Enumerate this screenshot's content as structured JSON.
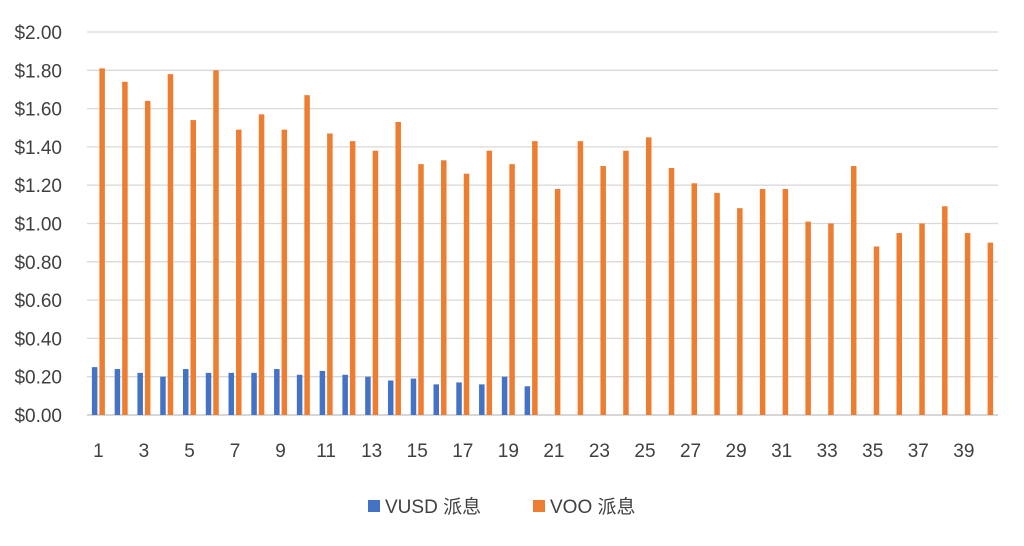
{
  "chart_data": {
    "type": "bar",
    "title": "",
    "xlabel": "",
    "ylabel": "",
    "ylim": [
      0,
      2
    ],
    "y_ticks": [
      "$0.00",
      "$0.20",
      "$0.40",
      "$0.60",
      "$0.80",
      "$1.00",
      "$1.20",
      "$1.40",
      "$1.60",
      "$1.80",
      "$2.00"
    ],
    "y_tick_values": [
      0,
      0.2,
      0.4,
      0.6,
      0.8,
      1.0,
      1.2,
      1.4,
      1.6,
      1.8,
      2.0
    ],
    "categories": [
      1,
      2,
      3,
      4,
      5,
      6,
      7,
      8,
      9,
      10,
      11,
      12,
      13,
      14,
      15,
      16,
      17,
      18,
      19,
      20,
      21,
      22,
      23,
      24,
      25,
      26,
      27,
      28,
      29,
      30,
      31,
      32,
      33,
      34,
      35,
      36,
      37,
      38,
      39,
      40
    ],
    "x_tick_labels_shown": [
      "1",
      "3",
      "5",
      "7",
      "9",
      "11",
      "13",
      "15",
      "17",
      "19",
      "21",
      "23",
      "25",
      "27",
      "29",
      "31",
      "33",
      "35",
      "37",
      "39"
    ],
    "grid": "horizontal",
    "legend_position": "bottom",
    "series": [
      {
        "name": "VUSD 派息",
        "color": "#4472C4",
        "values": [
          0.25,
          0.24,
          0.22,
          0.2,
          0.24,
          0.22,
          0.22,
          0.22,
          0.24,
          0.21,
          0.23,
          0.21,
          0.2,
          0.18,
          0.19,
          0.16,
          0.17,
          0.16,
          0.2,
          0.15,
          null,
          null,
          null,
          null,
          null,
          null,
          null,
          null,
          null,
          null,
          null,
          null,
          null,
          null,
          null,
          null,
          null,
          null,
          null,
          null
        ]
      },
      {
        "name": "VOO 派息",
        "color": "#ED7D31",
        "values": [
          1.81,
          1.74,
          1.64,
          1.78,
          1.54,
          1.8,
          1.49,
          1.57,
          1.49,
          1.67,
          1.47,
          1.43,
          1.38,
          1.53,
          1.31,
          1.33,
          1.26,
          1.38,
          1.31,
          1.43,
          1.18,
          1.43,
          1.3,
          1.38,
          1.45,
          1.29,
          1.21,
          1.16,
          1.08,
          1.18,
          1.18,
          1.01,
          1.0,
          1.3,
          0.88,
          0.95,
          1.0,
          1.09,
          0.95,
          0.9
        ]
      }
    ]
  }
}
